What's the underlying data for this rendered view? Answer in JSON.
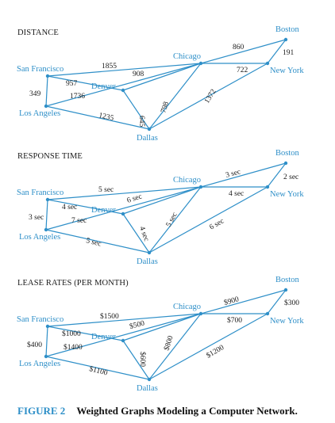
{
  "graphs": [
    {
      "title": "DISTANCE",
      "cities": {
        "boston": "Boston",
        "chicago": "Chicago",
        "sanfrancisco": "San Francisco",
        "newyork": "New York",
        "denver": "Denver",
        "losangeles": "Los Angeles",
        "dallas": "Dallas"
      },
      "weights": {
        "sf_chi": "1855",
        "chi_bos": "860",
        "bos_ny": "191",
        "chi_ny": "722",
        "den_chi": "908",
        "sf_den": "957",
        "sf_la": "349",
        "la_chi": "1736",
        "la_dal": "1235",
        "den_dal": "645",
        "dal_chi": "798",
        "dal_ny": "1372"
      }
    },
    {
      "title": "RESPONSE TIME",
      "cities": {
        "boston": "Boston",
        "chicago": "Chicago",
        "sanfrancisco": "San Francisco",
        "newyork": "New York",
        "denver": "Denver",
        "losangeles": "Los Angeles",
        "dallas": "Dallas"
      },
      "weights": {
        "sf_chi": "5 sec",
        "chi_bos": "3 sec",
        "bos_ny": "2 sec",
        "chi_ny": "4 sec",
        "den_chi": "6 sec",
        "sf_den": "4 sec",
        "sf_la": "3 sec",
        "la_chi": "7 sec",
        "la_dal": "5 sec",
        "den_dal": "4 sec",
        "dal_chi": "5 sec",
        "dal_ny": "6 sec"
      }
    },
    {
      "title": "LEASE RATES (PER MONTH)",
      "cities": {
        "boston": "Boston",
        "chicago": "Chicago",
        "sanfrancisco": "San Francisco",
        "newyork": "New York",
        "denver": "Denver",
        "losangeles": "Los Angeles",
        "dallas": "Dallas"
      },
      "weights": {
        "sf_chi": "$1500",
        "chi_bos": "$900",
        "bos_ny": "$300",
        "chi_ny": "$700",
        "den_chi": "$500",
        "sf_den": "$1000",
        "sf_la": "$400",
        "la_chi": "$1400",
        "la_dal": "$1100",
        "den_dal": "$600",
        "dal_chi": "$800",
        "dal_ny": "$1200"
      }
    }
  ],
  "caption": {
    "figure_label": "FIGURE 2",
    "text": "Weighted Graphs Modeling a Computer Network."
  },
  "colors": {
    "accent": "#2e8fc8",
    "text": "#1a1a1a"
  }
}
